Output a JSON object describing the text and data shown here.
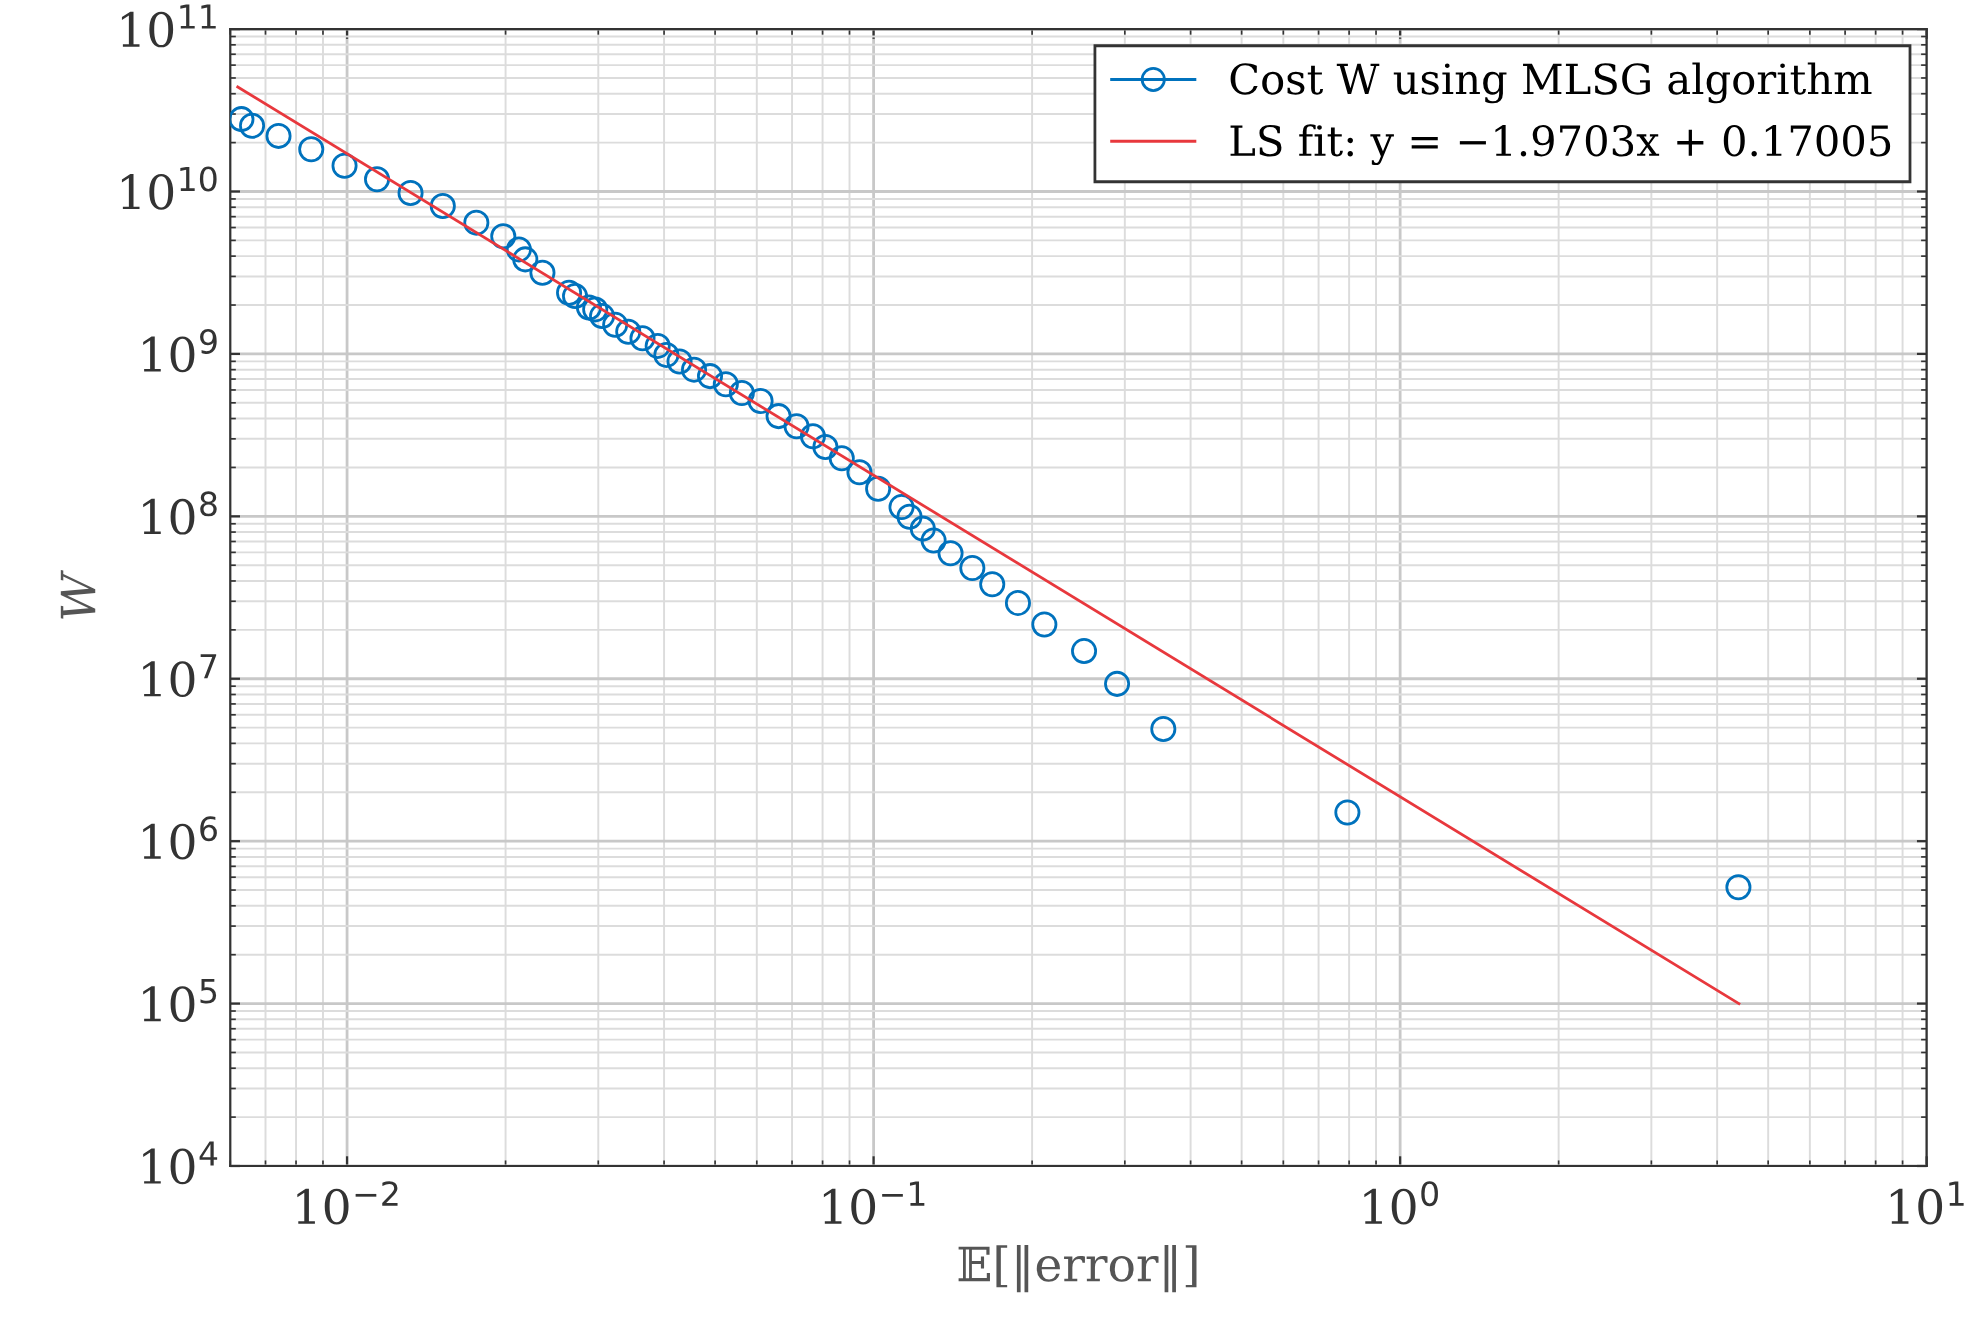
{
  "chart_data": {
    "type": "scatter",
    "xlabel": "𝔼[‖error‖]",
    "ylabel": "W",
    "log": "xy",
    "grid": true,
    "legend": "top right",
    "xlim": [
      0.006,
      10
    ],
    "ylim": [
      10000,
      100000000000
    ],
    "xticks": [
      {
        "value": 0.01,
        "label": "10$^{−2}$"
      },
      {
        "value": 0.1,
        "label": "10$^{−1}$"
      },
      {
        "value": 1,
        "label": "10$^{0}$"
      },
      {
        "value": 10,
        "label": "10$^{1}$"
      }
    ],
    "yticks": [
      {
        "value": 10000,
        "label": "10$^{4}$"
      },
      {
        "value": 100000,
        "label": "10$^{5}$"
      },
      {
        "value": 1000000,
        "label": "10$^{6}$"
      },
      {
        "value": 10000000,
        "label": "10$^{7}$"
      },
      {
        "value": 100000000,
        "label": "10$^{8}$"
      },
      {
        "value": 1000000000,
        "label": "10$^{9}$"
      },
      {
        "value": 10000000000,
        "label": "10$^{10}$"
      },
      {
        "value": 100000000000,
        "label": "10$^{11}$"
      }
    ],
    "series": [
      {
        "name": "Cost W using MLSG algorithm",
        "marker": "circle",
        "color": "#0072bd",
        "x": [
          0.0063,
          0.0066,
          0.00741,
          0.00855,
          0.00989,
          0.0114,
          0.0132,
          0.0152,
          0.0176,
          0.0198,
          0.0212,
          0.0218,
          0.0235,
          0.0264,
          0.0271,
          0.0288,
          0.0296,
          0.0305,
          0.0323,
          0.0342,
          0.0364,
          0.0389,
          0.0404,
          0.0428,
          0.0456,
          0.0489,
          0.0524,
          0.0562,
          0.061,
          0.066,
          0.0714,
          0.0767,
          0.081,
          0.087,
          0.094,
          0.102,
          0.113,
          0.117,
          0.124,
          0.13,
          0.14,
          0.154,
          0.168,
          0.188,
          0.211,
          0.251,
          0.29,
          0.355,
          0.794,
          4.39
        ],
        "values": [
          27900000000,
          25400000000,
          22000000000,
          18200000000,
          14400000000,
          11900000000,
          9800000000,
          8150000000,
          6430000000,
          5300000000,
          4400000000,
          3820000000,
          3160000000,
          2380000000,
          2270000000,
          1930000000,
          1880000000,
          1710000000,
          1510000000,
          1370000000,
          1250000000,
          1120000000,
          986000000,
          898000000,
          800000000,
          730000000,
          651000000,
          575000000,
          513000000,
          414000000,
          359000000,
          311000000,
          267000000,
          228000000,
          187000000,
          148000000,
          114000000,
          99500000,
          84000000,
          71000000,
          59300000,
          48100000,
          38200000,
          29300000,
          21600000,
          14800000,
          9300000,
          4900000,
          1500000,
          520000
        ]
      },
      {
        "name": "LS fit: y = −1.9703x + 0.17005",
        "type": "line",
        "color": "#e8383d",
        "x": [
          0.0062,
          4.4
        ],
        "values": [
          44000000000,
          100000
        ]
      }
    ]
  }
}
